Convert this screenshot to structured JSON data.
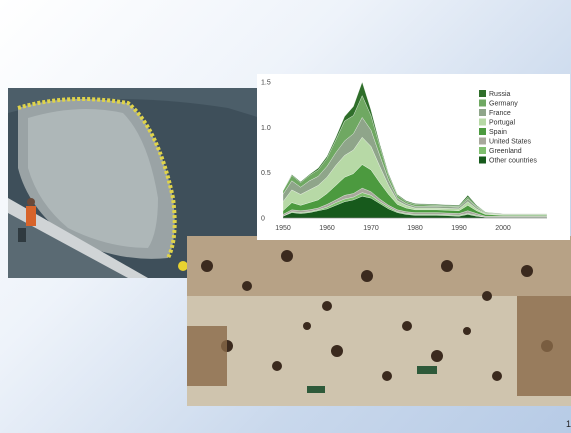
{
  "page_number": "1",
  "colors": {
    "Russia": "#2f6e2a",
    "Germany": "#6fa862",
    "France": "#8fa58a",
    "Portugal": "#b7d9a6",
    "Spain": "#4c9a3f",
    "United States": "#a8a89c",
    "Greenland": "#7fbf6e",
    "Other countries": "#175a1c"
  },
  "chart_data": {
    "type": "area",
    "stacked": true,
    "title": "",
    "xlabel": "",
    "ylabel": "",
    "x": [
      1950,
      1952,
      1954,
      1956,
      1958,
      1960,
      1962,
      1964,
      1966,
      1968,
      1970,
      1972,
      1974,
      1976,
      1978,
      1980,
      1985,
      1990,
      1992,
      1994,
      1996,
      2000,
      2005,
      2010
    ],
    "xlim": [
      1950,
      2010
    ],
    "ylim": [
      0,
      1.5
    ],
    "xticks": [
      "1950",
      "1960",
      "1970",
      "1980",
      "1990",
      "2000"
    ],
    "yticks": [
      "0",
      "0.5",
      "1.0",
      "1.5"
    ],
    "legend_position": "right",
    "series": [
      {
        "name": "Other countries",
        "values": [
          0.02,
          0.06,
          0.05,
          0.06,
          0.08,
          0.1,
          0.14,
          0.18,
          0.2,
          0.24,
          0.22,
          0.16,
          0.1,
          0.06,
          0.04,
          0.03,
          0.03,
          0.02,
          0.04,
          0.02,
          0.01,
          0.01,
          0.01,
          0.01
        ]
      },
      {
        "name": "Greenland",
        "values": [
          0.0,
          0.01,
          0.01,
          0.01,
          0.01,
          0.02,
          0.03,
          0.03,
          0.03,
          0.04,
          0.03,
          0.02,
          0.02,
          0.01,
          0.01,
          0.01,
          0.01,
          0.01,
          0.01,
          0.01,
          0.0,
          0.0,
          0.0,
          0.0
        ]
      },
      {
        "name": "United States",
        "values": [
          0.02,
          0.02,
          0.02,
          0.02,
          0.02,
          0.03,
          0.03,
          0.04,
          0.04,
          0.05,
          0.04,
          0.03,
          0.02,
          0.02,
          0.02,
          0.02,
          0.02,
          0.02,
          0.03,
          0.02,
          0.01,
          0.01,
          0.01,
          0.01
        ]
      },
      {
        "name": "Spain",
        "values": [
          0.04,
          0.08,
          0.06,
          0.08,
          0.09,
          0.12,
          0.16,
          0.2,
          0.22,
          0.26,
          0.24,
          0.18,
          0.12,
          0.06,
          0.04,
          0.03,
          0.03,
          0.03,
          0.06,
          0.03,
          0.02,
          0.01,
          0.01,
          0.01
        ]
      },
      {
        "name": "Portugal",
        "values": [
          0.1,
          0.14,
          0.12,
          0.14,
          0.16,
          0.18,
          0.22,
          0.24,
          0.26,
          0.3,
          0.26,
          0.18,
          0.1,
          0.04,
          0.03,
          0.02,
          0.02,
          0.02,
          0.04,
          0.02,
          0.01,
          0.01,
          0.01,
          0.01
        ]
      },
      {
        "name": "France",
        "values": [
          0.08,
          0.1,
          0.08,
          0.1,
          0.1,
          0.12,
          0.14,
          0.16,
          0.18,
          0.22,
          0.18,
          0.12,
          0.06,
          0.03,
          0.02,
          0.02,
          0.02,
          0.02,
          0.03,
          0.02,
          0.01,
          0.01,
          0.01,
          0.01
        ]
      },
      {
        "name": "Germany",
        "values": [
          0.04,
          0.06,
          0.05,
          0.06,
          0.07,
          0.09,
          0.14,
          0.22,
          0.2,
          0.24,
          0.16,
          0.1,
          0.05,
          0.03,
          0.02,
          0.02,
          0.01,
          0.01,
          0.02,
          0.01,
          0.01,
          0.0,
          0.0,
          0.0
        ]
      },
      {
        "name": "Russia",
        "values": [
          0.0,
          0.01,
          0.01,
          0.01,
          0.02,
          0.02,
          0.03,
          0.05,
          0.1,
          0.15,
          0.06,
          0.03,
          0.02,
          0.01,
          0.01,
          0.01,
          0.01,
          0.01,
          0.02,
          0.01,
          0.0,
          0.0,
          0.0,
          0.0
        ]
      }
    ],
    "legend": [
      "Russia",
      "Germany",
      "France",
      "Portugal",
      "Spain",
      "United States",
      "Greenland",
      "Other countries"
    ]
  }
}
